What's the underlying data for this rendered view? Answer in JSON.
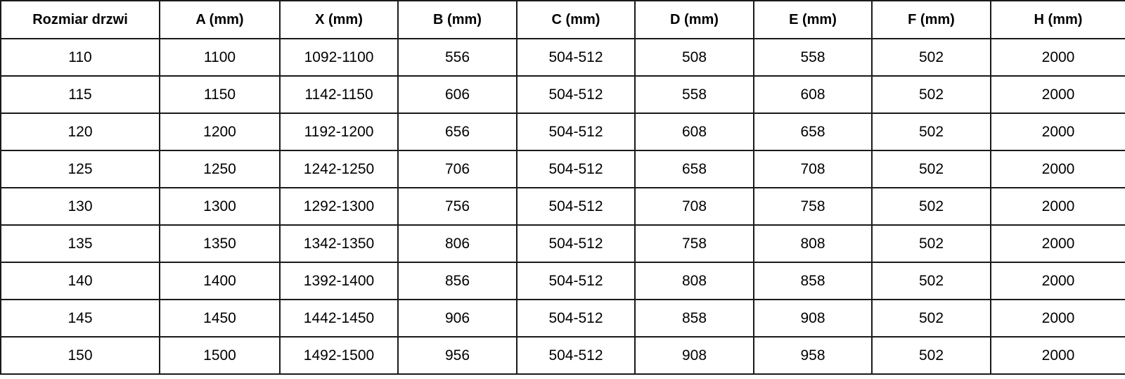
{
  "headers": [
    "Rozmiar drzwi",
    "A (mm)",
    "X (mm)",
    "B (mm)",
    "C (mm)",
    "D (mm)",
    "E (mm)",
    "F (mm)",
    "H (mm)"
  ],
  "rows": [
    [
      "110",
      "1100",
      "1092-1100",
      "556",
      "504-512",
      "508",
      "558",
      "502",
      "2000"
    ],
    [
      "115",
      "1150",
      "1142-1150",
      "606",
      "504-512",
      "558",
      "608",
      "502",
      "2000"
    ],
    [
      "120",
      "1200",
      "1192-1200",
      "656",
      "504-512",
      "608",
      "658",
      "502",
      "2000"
    ],
    [
      "125",
      "1250",
      "1242-1250",
      "706",
      "504-512",
      "658",
      "708",
      "502",
      "2000"
    ],
    [
      "130",
      "1300",
      "1292-1300",
      "756",
      "504-512",
      "708",
      "758",
      "502",
      "2000"
    ],
    [
      "135",
      "1350",
      "1342-1350",
      "806",
      "504-512",
      "758",
      "808",
      "502",
      "2000"
    ],
    [
      "140",
      "1400",
      "1392-1400",
      "856",
      "504-512",
      "808",
      "858",
      "502",
      "2000"
    ],
    [
      "145",
      "1450",
      "1442-1450",
      "906",
      "504-512",
      "858",
      "908",
      "502",
      "2000"
    ],
    [
      "150",
      "1500",
      "1492-1500",
      "956",
      "504-512",
      "908",
      "958",
      "502",
      "2000"
    ]
  ]
}
